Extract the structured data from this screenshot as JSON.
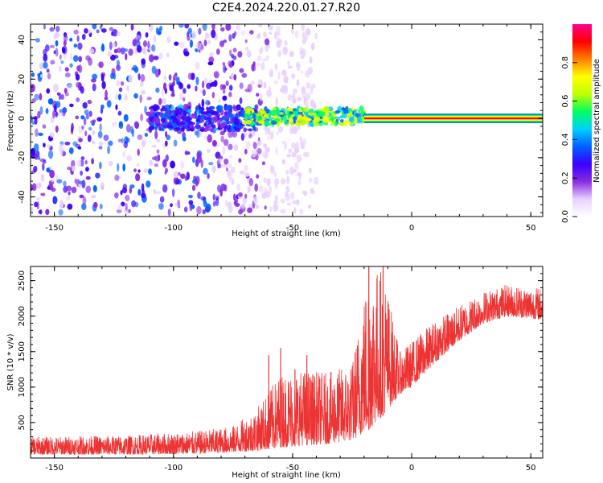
{
  "title": "C2E4.2024.220.01.27.R20",
  "chart_data": [
    {
      "type": "heatmap",
      "xlabel": "Height of straight line (km)",
      "ylabel": "Frequency (Hz)",
      "xlim": [
        -160,
        55
      ],
      "ylim": [
        -50,
        48
      ],
      "x_ticks": [
        -150,
        -100,
        -50,
        0,
        50
      ],
      "y_ticks": [
        -40,
        -20,
        0,
        20,
        40
      ],
      "colorbar": {
        "label": "Normalized spectral amplitude",
        "range": [
          0.0,
          1.0
        ],
        "ticks": [
          0.0,
          0.2,
          0.4,
          0.6,
          0.8
        ],
        "colors": [
          "#ffffff",
          "#e8d0ff",
          "#8a2be2",
          "#3a00ff",
          "#0060ff",
          "#00d0ff",
          "#00ff60",
          "#c0ff00",
          "#ffff00",
          "#ff8000",
          "#ff0000",
          "#ff0090"
        ]
      },
      "regions": [
        {
          "x": [
            -160,
            -65
          ],
          "freq_spread": 48,
          "amplitude": 0.15,
          "description": "scattered noise"
        },
        {
          "x": [
            -110,
            -65
          ],
          "freq_center": 0,
          "freq_halfwidth": 6,
          "amplitude": 0.3
        },
        {
          "x": [
            -70,
            -20
          ],
          "freq_center": 1,
          "freq_halfwidth": 4,
          "amplitude": 0.55
        },
        {
          "x": [
            -20,
            55
          ],
          "freq_center": 0,
          "freq_halfwidth": 1,
          "amplitude": 0.95
        }
      ]
    },
    {
      "type": "line",
      "xlabel": "Height of straight line (km)",
      "ylabel": "SNR (10 * v/v)",
      "xlim": [
        -160,
        55
      ],
      "ylim": [
        0,
        2700
      ],
      "x_ticks": [
        -150,
        -100,
        -50,
        0,
        50
      ],
      "y_ticks": [
        500,
        1000,
        1500,
        2000,
        2500
      ],
      "color": "#ee3333",
      "envelope": [
        {
          "x": -160,
          "low": 50,
          "high": 300
        },
        {
          "x": -120,
          "low": 50,
          "high": 320
        },
        {
          "x": -90,
          "low": 60,
          "high": 380
        },
        {
          "x": -75,
          "low": 80,
          "high": 450
        },
        {
          "x": -65,
          "low": 100,
          "high": 700
        },
        {
          "x": -55,
          "low": 150,
          "high": 1200
        },
        {
          "x": -45,
          "low": 180,
          "high": 1250
        },
        {
          "x": -35,
          "low": 200,
          "high": 1200
        },
        {
          "x": -25,
          "low": 250,
          "high": 1350
        },
        {
          "x": -18,
          "low": 400,
          "high": 2700
        },
        {
          "x": -12,
          "low": 600,
          "high": 2700
        },
        {
          "x": -5,
          "low": 900,
          "high": 1500
        },
        {
          "x": 0,
          "low": 1000,
          "high": 1650
        },
        {
          "x": 10,
          "low": 1350,
          "high": 1950
        },
        {
          "x": 20,
          "low": 1650,
          "high": 2150
        },
        {
          "x": 30,
          "low": 1900,
          "high": 2350
        },
        {
          "x": 40,
          "low": 2000,
          "high": 2450
        },
        {
          "x": 55,
          "low": 1950,
          "high": 2400
        }
      ],
      "spikes": [
        {
          "x": -60,
          "value": 1450
        },
        {
          "x": -55,
          "value": 1550
        },
        {
          "x": -49,
          "value": 1250
        },
        {
          "x": -44,
          "value": 1450
        },
        {
          "x": -18,
          "value": 2700
        },
        {
          "x": -12,
          "value": 2700
        }
      ]
    }
  ]
}
